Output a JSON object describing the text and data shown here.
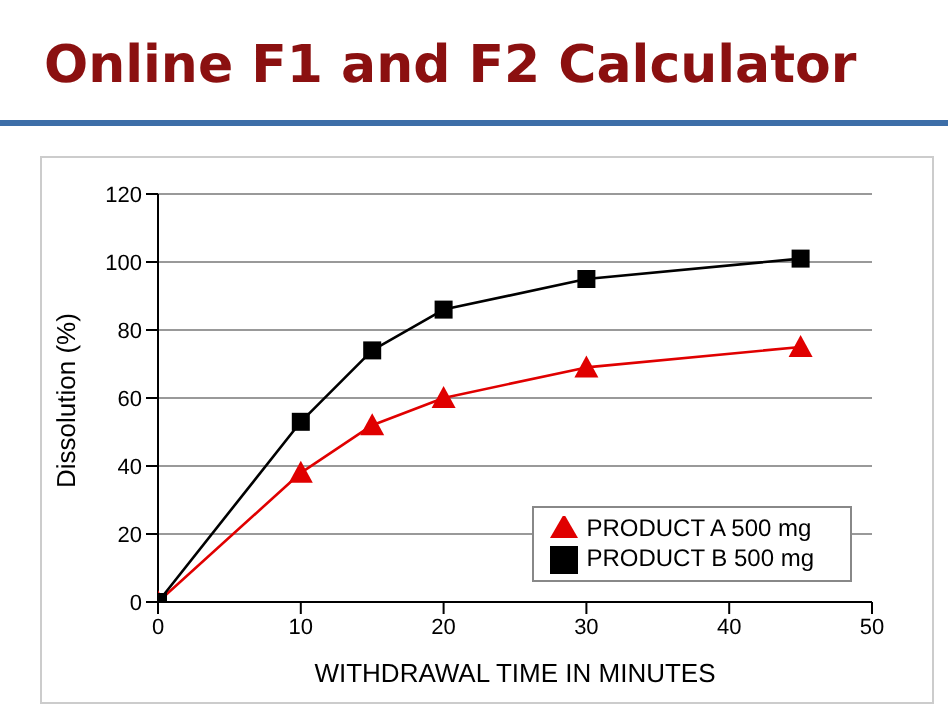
{
  "chart_data": {
    "type": "line",
    "title": "Online F1 and F2 Calculator",
    "xlabel": "WITHDRAWAL TIME IN MINUTES",
    "ylabel": "Dissolution (%)",
    "x": [
      0,
      10,
      15,
      20,
      30,
      45
    ],
    "series": [
      {
        "name": "PRODUCT A 500 mg",
        "color": "#e00000",
        "marker": "triangle",
        "values": [
          0,
          38,
          52,
          60,
          69,
          75
        ]
      },
      {
        "name": "PRODUCT B 500 mg",
        "color": "#000000",
        "marker": "square",
        "values": [
          0,
          53,
          74,
          86,
          95,
          101
        ]
      }
    ],
    "xlim": [
      0,
      50
    ],
    "xticks": [
      0,
      10,
      20,
      30,
      40,
      50
    ],
    "ylim": [
      0,
      120
    ],
    "yticks": [
      0,
      20,
      40,
      60,
      80,
      100,
      120
    ],
    "grid": "y",
    "legend": "bottom right"
  }
}
